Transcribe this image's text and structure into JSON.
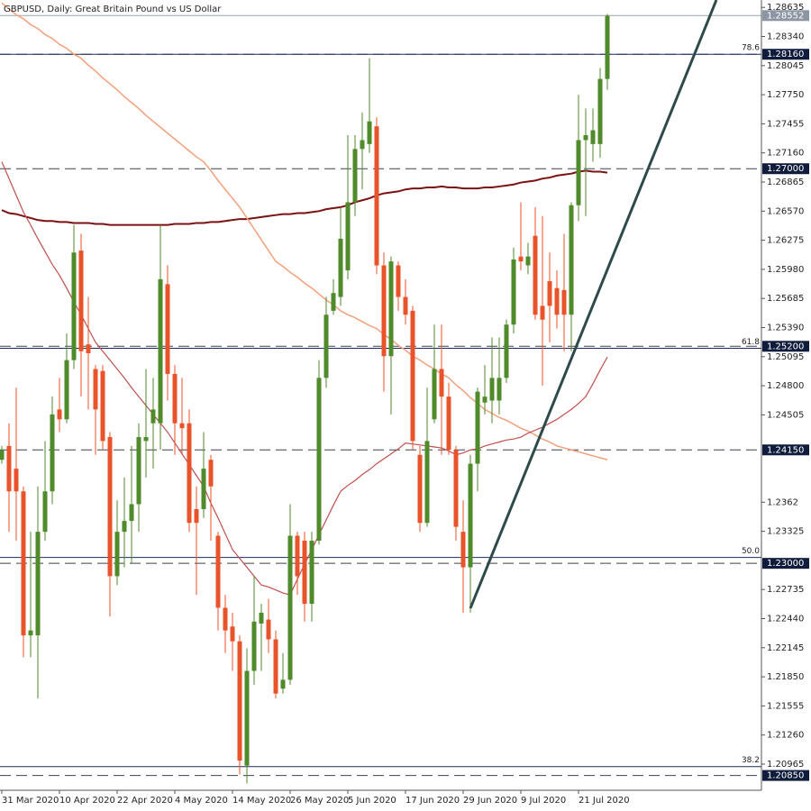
{
  "chart_data": {
    "type": "candlestick",
    "title": "GBPUSD, Daily:  Great Britain Pound vs US Dollar",
    "categories": [
      "31 Mar 2020",
      null,
      null,
      null,
      null,
      null,
      null,
      null,
      "10 Apr 2020",
      null,
      null,
      null,
      null,
      null,
      null,
      null,
      "22 Apr 2020",
      null,
      null,
      null,
      null,
      null,
      null,
      null,
      "4 May 2020",
      null,
      null,
      null,
      null,
      null,
      null,
      null,
      "14 May 2020",
      null,
      null,
      null,
      null,
      null,
      null,
      null,
      "26 May 2020",
      null,
      null,
      null,
      null,
      null,
      null,
      null,
      "5 Jun 2020",
      null,
      null,
      null,
      null,
      null,
      null,
      null,
      "17 Jun 2020",
      null,
      null,
      null,
      null,
      null,
      null,
      null,
      "29 Jun 2020",
      null,
      null,
      null,
      null,
      null,
      null,
      null,
      "9 Jul 2020",
      null,
      null,
      null,
      null,
      null,
      null,
      null,
      "21 Jul 2020",
      null,
      null,
      null,
      null
    ],
    "open": [
      1.2405,
      1.2419,
      1.2396,
      1.2373,
      1.2227,
      1.2227,
      1.2332,
      1.2373,
      1.2456,
      1.2446,
      1.2506,
      1.2617,
      1.2522,
      1.2497,
      1.2495,
      1.2428,
      1.2287,
      1.2332,
      1.2343,
      1.236,
      1.2424,
      1.2442,
      1.2442,
      1.2583,
      1.2492,
      1.2442,
      1.2442,
      1.2355,
      1.2355,
      1.2405,
      1.2328,
      1.2255,
      1.2236,
      1.2221,
      1.2095,
      1.2191,
      1.2239,
      1.2243,
      1.2223,
      1.2173,
      1.2182,
      1.2328,
      1.2323,
      1.2259,
      1.2323,
      1.2488,
      1.2556,
      1.257,
      1.2597,
      1.2666,
      1.272,
      1.2725,
      1.2743,
      1.2602,
      1.251,
      1.2602,
      1.257,
      1.2556,
      1.241,
      1.2341,
      1.2446,
      1.2497,
      1.2469,
      1.2415,
      1.2332,
      1.2296,
      1.2401,
      1.2463,
      1.2465,
      1.2465,
      1.2488,
      1.2542,
      1.2611,
      1.2602,
      1.2632,
      1.2561,
      1.2586,
      1.2579,
      1.2577,
      1.2552,
      1.2663,
      1.2729,
      1.2725,
      1.2725,
      1.2791
    ],
    "high": [
      1.2419,
      1.2442,
      1.2478,
      1.2378,
      1.2332,
      1.2378,
      1.2424,
      1.2469,
      1.2488,
      1.2533,
      1.2643,
      1.2634,
      1.257,
      1.2501,
      1.2501,
      1.2433,
      1.2364,
      1.2387,
      1.2419,
      1.2442,
      1.2497,
      1.2488,
      1.2643,
      1.2602,
      1.2501,
      1.2488,
      1.2456,
      1.2378,
      1.2433,
      1.241,
      1.2332,
      1.2268,
      1.225,
      1.2227,
      1.2214,
      1.2287,
      1.2259,
      1.2264,
      1.2232,
      1.2209,
      1.236,
      1.2332,
      1.2332,
      1.2332,
      1.2506,
      1.257,
      1.2588,
      1.2661,
      1.2734,
      1.2734,
      1.2757,
      1.2812,
      1.2752,
      1.2615,
      1.2611,
      1.2606,
      1.2588,
      1.2561,
      1.2419,
      1.2478,
      1.2542,
      1.2542,
      1.2483,
      1.2419,
      1.2364,
      1.241,
      1.2478,
      1.2501,
      1.2529,
      1.2529,
      1.2547,
      1.262,
      1.2666,
      1.2625,
      1.2661,
      1.2652,
      1.2615,
      1.2597,
      1.2634,
      1.2666,
      1.2775,
      1.2761,
      1.2761,
      1.2802,
      1.2857
    ],
    "low": [
      1.2401,
      1.2332,
      1.2323,
      1.2205,
      1.2205,
      1.2163,
      1.2323,
      1.236,
      1.2433,
      1.2442,
      1.2497,
      1.2469,
      1.2456,
      1.241,
      1.2415,
      1.2246,
      1.2278,
      1.2296,
      1.23,
      1.2332,
      1.2387,
      1.2396,
      1.2415,
      1.2465,
      1.241,
      1.241,
      1.2332,
      1.2268,
      1.2346,
      1.2323,
      1.2232,
      1.2209,
      1.2191,
      1.2086,
      1.2077,
      1.2177,
      1.2191,
      1.2209,
      1.2163,
      1.2168,
      1.2177,
      1.2268,
      1.2241,
      1.2241,
      1.2319,
      1.2478,
      1.2552,
      1.2561,
      1.2588,
      1.2652,
      1.2679,
      1.2716,
      1.2593,
      1.2474,
      1.2451,
      1.2556,
      1.2542,
      1.2415,
      1.2332,
      1.2337,
      1.2442,
      1.241,
      1.241,
      1.2323,
      1.225,
      1.225,
      1.2373,
      1.2451,
      1.2442,
      1.2451,
      1.2483,
      1.2533,
      1.2597,
      1.2593,
      1.2547,
      1.248,
      1.2524,
      1.2538,
      1.2515,
      1.2515,
      1.2647,
      1.2652,
      1.2707,
      1.2711,
      1.278
    ],
    "close": [
      1.2415,
      1.2373,
      1.2373,
      1.2227,
      1.2232,
      1.2332,
      1.2373,
      1.2451,
      1.2446,
      1.2506,
      1.2615,
      1.2515,
      1.2513,
      1.2456,
      1.2424,
      1.2287,
      1.2332,
      1.2343,
      1.236,
      1.2428,
      1.2428,
      1.2456,
      1.2588,
      1.2492,
      1.2442,
      1.2437,
      1.2341,
      1.2341,
      1.2396,
      1.2378,
      1.2255,
      1.2232,
      1.2221,
      1.21,
      1.2191,
      1.2241,
      1.225,
      1.2223,
      1.2168,
      1.2182,
      1.2328,
      1.2287,
      1.2259,
      1.2323,
      1.2488,
      1.2552,
      1.2574,
      1.2629,
      1.2666,
      1.272,
      1.2729,
      1.2748,
      1.2602,
      1.251,
      1.2606,
      1.257,
      1.2552,
      1.2424,
      1.2341,
      1.2424,
      1.2497,
      1.2469,
      1.2415,
      1.2337,
      1.2296,
      1.2401,
      1.2474,
      1.2469,
      1.2488,
      1.2488,
      1.2542,
      1.2608,
      1.2606,
      1.2611,
      1.2552,
      1.2547,
      1.2561,
      1.2552,
      1.2552,
      1.2663,
      1.2729,
      1.2734,
      1.2739,
      1.2791,
      1.2855
    ],
    "up_color": "#4f8a2b",
    "down_color": "#e8532b",
    "overlays": [
      {
        "color": "#7b1212",
        "width": 2,
        "values": [
          1.2658,
          1.2655,
          1.2654,
          1.2652,
          1.265,
          1.2648,
          1.2647,
          1.2647,
          1.2646,
          1.2646,
          1.2645,
          1.2645,
          1.2645,
          1.2644,
          1.2644,
          1.2643,
          1.2643,
          1.2643,
          1.2643,
          1.2643,
          1.2643,
          1.2643,
          1.2643,
          1.2643,
          1.2644,
          1.2644,
          1.2644,
          1.2645,
          1.2645,
          1.2646,
          1.2646,
          1.2647,
          1.2648,
          1.2649,
          1.2649,
          1.265,
          1.2651,
          1.2652,
          1.2653,
          1.2654,
          1.2654,
          1.2655,
          1.2655,
          1.2656,
          1.2657,
          1.2659,
          1.266,
          1.2661,
          1.2663,
          1.2666,
          1.2668,
          1.267,
          1.2673,
          1.2675,
          1.2676,
          1.2677,
          1.2679,
          1.268,
          1.268,
          1.2681,
          1.2681,
          1.2682,
          1.2681,
          1.2681,
          1.268,
          1.268,
          1.268,
          1.2681,
          1.2681,
          1.2682,
          1.2683,
          1.2684,
          1.2686,
          1.2687,
          1.2688,
          1.269,
          1.2691,
          1.2693,
          1.2694,
          1.2695,
          1.2697,
          1.2698,
          1.2697,
          1.2697,
          1.2696
        ]
      },
      {
        "color": "#f4a07a",
        "width": 1.5,
        "values": [
          1.2868,
          1.2862,
          1.2856,
          1.2852,
          1.2846,
          1.2842,
          1.2836,
          1.2832,
          1.2826,
          1.2822,
          1.2816,
          1.2812,
          1.2805,
          1.2799,
          1.2792,
          1.2786,
          1.278,
          1.2773,
          1.2767,
          1.2761,
          1.2754,
          1.2748,
          1.2742,
          1.2736,
          1.273,
          1.2724,
          1.2718,
          1.2712,
          1.2707,
          1.2698,
          1.2688,
          1.2679,
          1.267,
          1.2661,
          1.265,
          1.2639,
          1.2628,
          1.2617,
          1.2606,
          1.2601,
          1.2595,
          1.259,
          1.2584,
          1.2579,
          1.2573,
          1.2567,
          1.2562,
          1.2556,
          1.2552,
          1.2549,
          1.2545,
          1.2541,
          1.2538,
          1.2532,
          1.2527,
          1.2521,
          1.2516,
          1.251,
          1.2506,
          1.2501,
          1.2497,
          1.2492,
          1.2488,
          1.2481,
          1.2475,
          1.2468,
          1.2462,
          1.2456,
          1.2452,
          1.2448,
          1.2445,
          1.2441,
          1.2437,
          1.2434,
          1.243,
          1.2426,
          1.2423,
          1.2419,
          1.2417,
          1.2415,
          1.2413,
          1.2411,
          1.2409,
          1.2407,
          1.2405
        ]
      },
      {
        "color": "#c0504d",
        "width": 1.2,
        "values": [
          1.2707,
          1.269,
          1.2673,
          1.2656,
          1.2643,
          1.2629,
          1.2616,
          1.2603,
          1.2592,
          1.2579,
          1.2565,
          1.2552,
          1.2538,
          1.2524,
          1.2515,
          1.2506,
          1.2497,
          1.2488,
          1.2478,
          1.2469,
          1.246,
          1.2451,
          1.2442,
          1.2433,
          1.2422,
          1.2411,
          1.24,
          1.2389,
          1.2378,
          1.2361,
          1.2346,
          1.233,
          1.2314,
          1.2305,
          1.2296,
          1.2287,
          1.2278,
          1.2276,
          1.2273,
          1.227,
          1.2268,
          1.2284,
          1.2299,
          1.2314,
          1.2329,
          1.2344,
          1.2359,
          1.2373,
          1.2379,
          1.2384,
          1.239,
          1.2395,
          1.2401,
          1.2406,
          1.2411,
          1.2416,
          1.2422,
          1.2421,
          1.242,
          1.2419,
          1.2418,
          1.2417,
          1.2414,
          1.241,
          1.2412,
          1.2415,
          1.2416,
          1.2419,
          1.2421,
          1.2423,
          1.2425,
          1.2426,
          1.2428,
          1.2432,
          1.2435,
          1.2438,
          1.2442,
          1.2446,
          1.2451,
          1.2456,
          1.2462,
          1.2469,
          1.2482,
          1.2496,
          1.2509
        ]
      }
    ],
    "ylim": [
      1.207,
      1.2871
    ],
    "yticks": [
      1.28635,
      {
        "value": 1.2834,
        "label": "1.28340"
      },
      1.28045,
      {
        "value": 1.2775,
        "label": "1.27750"
      },
      1.27455,
      {
        "value": 1.2716,
        "label": "1.27160"
      },
      1.26865,
      {
        "value": 1.2657,
        "label": "1.26570"
      },
      1.26275,
      {
        "value": 1.2598,
        "label": "1.25980"
      },
      1.25685,
      {
        "value": 1.2539,
        "label": "1.25390"
      },
      1.25095,
      {
        "value": 1.248,
        "label": "1.24800"
      },
      1.24505,
      1.2362,
      1.23325,
      1.22735,
      {
        "value": 1.2244,
        "label": "1.22440"
      },
      1.22145,
      {
        "value": 1.2185,
        "label": "1.21850"
      },
      1.21555,
      {
        "value": 1.2126,
        "label": "1.21260"
      },
      1.20965
    ],
    "levels": [
      {
        "value": 1.2816,
        "label": "1.28160"
      },
      {
        "value": 1.27,
        "label": "1.27000"
      },
      {
        "value": 1.252,
        "label": "1.25200"
      },
      {
        "value": 1.2415,
        "label": "1.24150"
      },
      {
        "value": 1.23,
        "label": "1.23000"
      },
      {
        "value": 1.2085,
        "label": "1.20850"
      }
    ],
    "current_price": {
      "value": 1.28552,
      "label": "1.28552"
    },
    "fibonacci": [
      {
        "level": 1.2816,
        "label": "78.6"
      },
      {
        "level": 1.2518,
        "label": "61.8"
      },
      {
        "level": 1.2306,
        "label": "50.0"
      },
      {
        "level": 1.2094,
        "label": "38.2"
      }
    ]
  }
}
